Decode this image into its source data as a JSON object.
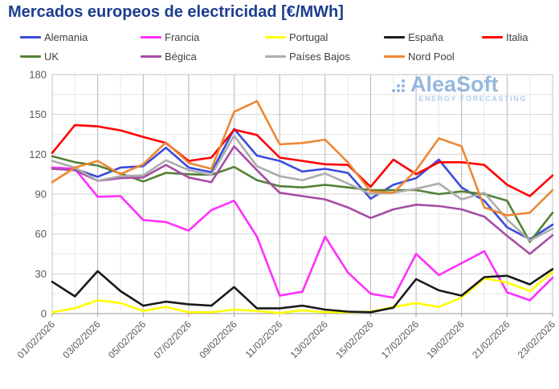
{
  "title": "Mercados europeos de electricidad [€/MWh]",
  "watermark": {
    "brand": "AleaSoft",
    "tagline": "ENERGY FORECASTING"
  },
  "chart_data": {
    "type": "line",
    "title": "Mercados europeos de electricidad [€/MWh]",
    "xlabel": "",
    "ylabel": "",
    "ylim": [
      0,
      180
    ],
    "ytick_step": 30,
    "ytick_labels": [
      "0",
      "30",
      "60",
      "90",
      "120",
      "150",
      "180"
    ],
    "grid": "major and minor (15) gridlines on, light gray; labeled-day verticals darker",
    "legend_position": "top, two rows",
    "legend_rows": [
      [
        "Alemania",
        "Francia",
        "Portugal",
        "España",
        "Italia"
      ],
      [
        "UK",
        "Bégica",
        "Países Bajos",
        "Nord Pool"
      ]
    ],
    "x": [
      "01/02/2026",
      "02/02/2026",
      "03/02/2026",
      "04/02/2026",
      "05/02/2026",
      "06/02/2026",
      "07/02/2026",
      "08/02/2026",
      "09/02/2026",
      "10/02/2026",
      "11/02/2026",
      "12/02/2026",
      "13/02/2026",
      "14/02/2026",
      "15/02/2026",
      "16/02/2026",
      "17/02/2026",
      "18/02/2026",
      "19/02/2026",
      "20/02/2026",
      "21/02/2026",
      "22/02/2026",
      "23/02/2026"
    ],
    "x_tick_labels": [
      "01/02/2026",
      "03/02/2026",
      "05/02/2026",
      "07/02/2026",
      "09/02/2026",
      "11/02/2026",
      "13/02/2026",
      "15/02/2026",
      "17/02/2026",
      "19/02/2026",
      "21/02/2026",
      "23/02/2026"
    ],
    "series": [
      {
        "name": "Alemania",
        "color": "#3B4BDB",
        "values": [
          110,
          109,
          103,
          110,
          111,
          125,
          110,
          106.5,
          139,
          119,
          115,
          107,
          109,
          106,
          86.5,
          97,
          102,
          116,
          95,
          85,
          65,
          56,
          67
        ]
      },
      {
        "name": "Francia",
        "color": "#FF30FF",
        "values": [
          110,
          109,
          88,
          88.5,
          70.5,
          69,
          62.5,
          78,
          85,
          58,
          13.5,
          16.5,
          58,
          31,
          15,
          12,
          45,
          29,
          38,
          47,
          16,
          10,
          27
        ]
      },
      {
        "name": "Portugal",
        "color": "#FFFF00",
        "values": [
          1,
          4,
          10,
          8,
          2,
          5,
          1,
          1,
          3,
          2,
          0.5,
          2.5,
          1,
          1,
          1.5,
          5,
          8,
          5,
          12,
          26.5,
          23.5,
          17,
          31.5
        ]
      },
      {
        "name": "España",
        "color": "#1A1A1A",
        "values": [
          24,
          13,
          32,
          17,
          6,
          9,
          7,
          6,
          20,
          4,
          4,
          6,
          3,
          1.5,
          1,
          4.5,
          26,
          17.5,
          13.5,
          27.5,
          28.5,
          22,
          33.5
        ]
      },
      {
        "name": "Italia",
        "color": "#FF0000",
        "values": [
          121,
          142,
          141,
          138,
          133,
          128.5,
          115,
          117.5,
          138.5,
          134.5,
          117.5,
          115,
          112.5,
          112,
          95.5,
          116,
          105,
          114,
          114,
          112,
          97,
          88.5,
          104
        ]
      },
      {
        "name": "UK",
        "color": "#538135",
        "values": [
          118.5,
          114,
          111.5,
          105.5,
          99.5,
          106,
          105,
          104.5,
          110.5,
          100.5,
          96,
          95,
          97,
          95,
          93,
          93,
          93,
          90,
          92,
          90,
          85,
          54,
          76
        ]
      },
      {
        "name": "Bégica",
        "color": "#A64CA6",
        "values": [
          109,
          108,
          100,
          102,
          102.5,
          112,
          102.5,
          99,
          126,
          108,
          91,
          88.5,
          86,
          80,
          72,
          78.5,
          82,
          81,
          78.5,
          73,
          58.5,
          45,
          59
        ]
      },
      {
        "name": "Países Bajos",
        "color": "#ACACAC",
        "values": [
          115,
          110,
          100,
          103.5,
          104,
          115.5,
          108,
          104.5,
          134,
          111,
          103.5,
          100.5,
          105.5,
          98,
          90,
          91,
          94,
          98,
          86,
          91,
          71,
          55,
          64
        ]
      },
      {
        "name": "Nord Pool",
        "color": "#ED8733",
        "values": [
          99,
          110,
          115,
          105,
          112.5,
          129,
          113.5,
          109,
          152,
          160,
          127.5,
          128.5,
          131,
          114,
          92,
          91,
          108,
          132,
          126,
          80,
          74,
          76,
          93
        ]
      }
    ]
  }
}
